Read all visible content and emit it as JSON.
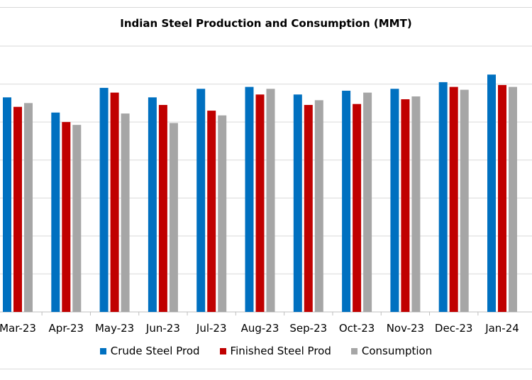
{
  "chart_data": {
    "type": "bar",
    "title": "Indian Steel Production and Consumption (MMT)",
    "categories": [
      "Mar-23",
      "Apr-23",
      "May-23",
      "Jun-23",
      "Jul-23",
      "Aug-23",
      "Sep-23",
      "Oct-23",
      "Nov-23",
      "Dec-23",
      "Jan-24"
    ],
    "series": [
      {
        "name": "Crude Steel Prod",
        "color": "#0070C0",
        "values": [
          11.3,
          10.5,
          11.8,
          11.3,
          11.75,
          11.85,
          11.45,
          11.65,
          11.75,
          12.1,
          12.5
        ]
      },
      {
        "name": "Finished Steel Prod",
        "color": "#C00000",
        "values": [
          10.8,
          10.0,
          11.55,
          10.9,
          10.6,
          11.45,
          10.9,
          10.95,
          11.2,
          11.85,
          11.95
        ]
      },
      {
        "name": "Consumption",
        "color": "#A6A6A6",
        "values": [
          11.0,
          9.85,
          10.45,
          9.95,
          10.35,
          11.75,
          11.15,
          11.55,
          11.35,
          11.7,
          11.85
        ]
      }
    ],
    "ylim": [
      0,
      14
    ],
    "grid": true,
    "legend_position": "bottom"
  }
}
